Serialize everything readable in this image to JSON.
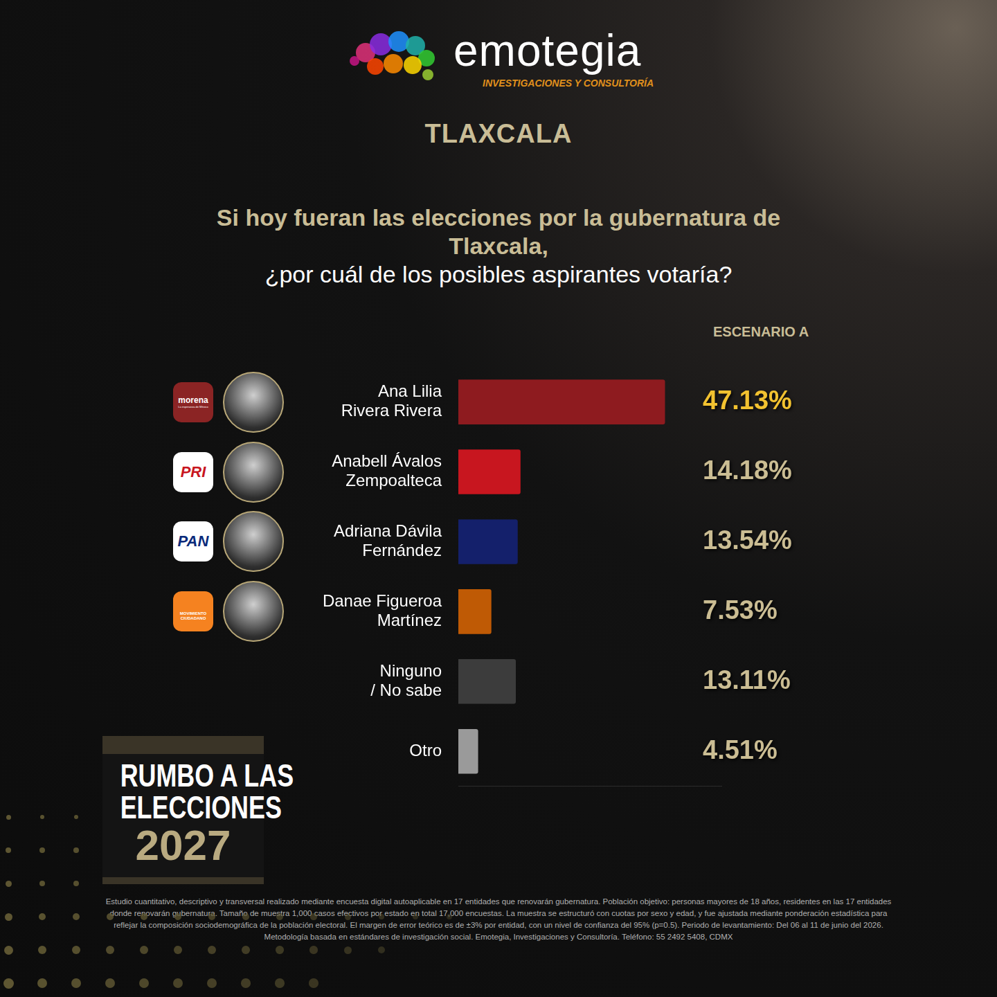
{
  "header": {
    "brand": "emotegia",
    "brand_subtitle": "INVESTIGACIONES Y CONSULTORÍA",
    "state": "TLAXCALA"
  },
  "chart_data": {
    "type": "bar",
    "orientation": "horizontal",
    "title": "Si hoy fueran las elecciones por la gubernatura de Tlaxcala,",
    "subtitle": "¿por cuál de los posibles aspirantes votaría?",
    "series_label": "ESCENARIO A",
    "categories": [
      "Ana Lilia Rivera Rivera",
      "Anabell Ávalos Zempoalteca",
      "Adriana Dávila Fernández",
      "Danae Figueroa Martínez",
      "Ninguno / No sabe",
      "Otro"
    ],
    "values": [
      47.13,
      14.18,
      13.54,
      7.53,
      13.11,
      4.51
    ],
    "value_labels": [
      "47.13%",
      "14.18%",
      "13.54%",
      "7.53%",
      "13.11%",
      "4.51%"
    ],
    "colors": [
      "#8e1b1f",
      "#c8161f",
      "#14206b",
      "#bf5a05",
      "#3c3c3c",
      "#9a9a9a"
    ],
    "xlim": [
      0,
      60
    ],
    "grid": false,
    "data_labels": true,
    "tick_labels": "y"
  },
  "parties": [
    {
      "name": "morena",
      "tagline": "La esperanza de México",
      "color": "#8b2424"
    },
    {
      "name": "PRI",
      "color": "#ffffff"
    },
    {
      "name": "PAN",
      "color": "#ffffff"
    },
    {
      "name": "MOVIMIENTO CIUDADANO",
      "color": "#f58220"
    }
  ],
  "badge": [
    "RUMBO A LAS",
    "ELECCIONES",
    "2027"
  ],
  "footer": "Estudio cuantitativo, descriptivo y transversal realizado mediante encuesta digital autoaplicable en 17 entidades que renovarán gubernatura. Población objetivo: personas mayores de 18 años, residentes en las 17 entidades donde renovarán gubernatura. Tamaño de muestra 1,000 casos efectivos por estado en total 17,000 encuestas. La muestra se estructuró con cuotas por sexo y edad, y fue ajustada mediante ponderación estadística para reflejar la composición sociodemográfica de la población electoral. El margen de error teórico es de ±3% por entidad, con un nivel de confianza del 95% (p=0.5). Periodo de levantamiento: Del 06 al 11 de junio del 2026. Metodología basada en estándares de investigación social. Emotegia, Investigaciones y Consultoría. Teléfono: 55 2492 5408, CDMX"
}
